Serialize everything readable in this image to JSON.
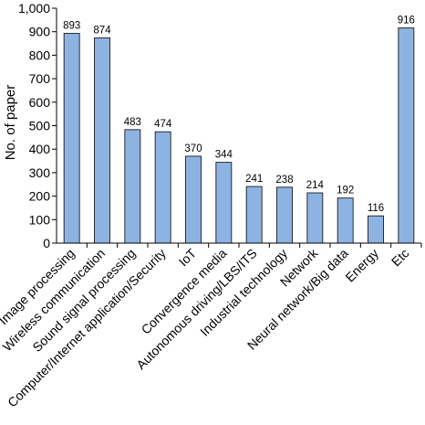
{
  "chart_data": {
    "type": "bar",
    "title": "",
    "xlabel": "",
    "ylabel": "No. of paper",
    "ylim": [
      0,
      1000
    ],
    "yticks": [
      "0",
      "100",
      "200",
      "300",
      "400",
      "500",
      "600",
      "700",
      "800",
      "900",
      "1,000"
    ],
    "grid": false,
    "legend": "none",
    "bar_color": "#8db3e2",
    "categories": [
      "Image processing",
      "Wireless communication",
      "Sound signal processing",
      "Computer/Internet application/Security",
      "IoT",
      "Convergence media",
      "Autonomous driving/LBS/ITS",
      "Industrial technology",
      "Network",
      "Neural network/Big data",
      "Energy",
      "Etc"
    ],
    "values": [
      893,
      874,
      483,
      474,
      370,
      344,
      241,
      238,
      214,
      192,
      116,
      916
    ]
  }
}
